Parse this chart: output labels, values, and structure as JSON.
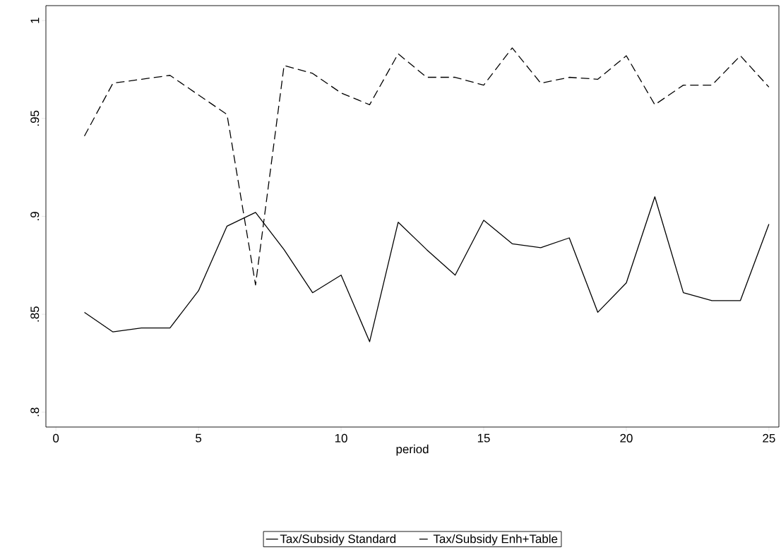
{
  "chart_data": {
    "type": "line",
    "xlabel": "period",
    "x": [
      1,
      2,
      3,
      4,
      5,
      6,
      7,
      8,
      9,
      10,
      11,
      12,
      13,
      14,
      15,
      16,
      17,
      18,
      19,
      20,
      21,
      22,
      23,
      24,
      25
    ],
    "series": [
      {
        "name": "Tax/Subsidy Standard",
        "color": "#000000",
        "line_style": "solid",
        "values": [
          0.851,
          0.841,
          0.843,
          0.843,
          0.862,
          0.895,
          0.902,
          0.883,
          0.861,
          0.87,
          0.836,
          0.897,
          0.883,
          0.87,
          0.898,
          0.886,
          0.884,
          0.889,
          0.851,
          0.866,
          0.91,
          0.861,
          0.857,
          0.857,
          0.896
        ]
      },
      {
        "name": "Tax/Subsidy Enh+Table",
        "color": "#000000",
        "line_style": "dashed",
        "values": [
          0.941,
          0.968,
          0.97,
          0.972,
          0.962,
          0.952,
          0.865,
          0.977,
          0.973,
          0.963,
          0.957,
          0.983,
          0.971,
          0.971,
          0.967,
          0.986,
          0.968,
          0.971,
          0.97,
          0.982,
          0.957,
          0.967,
          0.967,
          0.982,
          0.966
        ]
      }
    ],
    "xlim": [
      -0.35,
      25.35
    ],
    "ylim": [
      0.7924,
      1.0076
    ],
    "xticks": [
      0,
      5,
      10,
      15,
      20,
      25
    ],
    "yticks": [
      {
        "value": 0.8,
        "label": ".8"
      },
      {
        "value": 0.85,
        "label": ".85"
      },
      {
        "value": 0.9,
        "label": ".9"
      },
      {
        "value": 0.95,
        "label": ".95"
      },
      {
        "value": 1,
        "label": "1"
      }
    ],
    "grid": false,
    "legend": "bottom",
    "marker": "none"
  }
}
